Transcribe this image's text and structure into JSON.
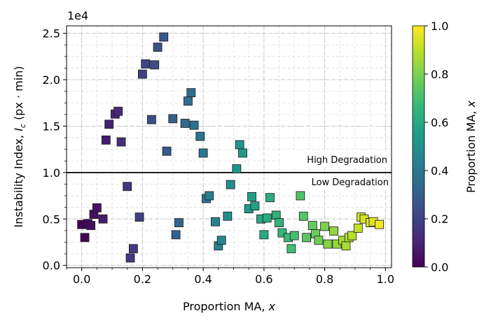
{
  "chart_data": {
    "type": "scatter",
    "xlabel": "Proportion MA, x",
    "ylabel": "Instability Index, I_c (px · min)",
    "y_offset_text": "1e4",
    "xlim": [
      -0.05,
      1.02
    ],
    "ylim": [
      -250,
      25800
    ],
    "x_ticks": [
      0.0,
      0.2,
      0.4,
      0.6,
      0.8,
      1.0
    ],
    "x_tick_labels": [
      "0.0",
      "0.2",
      "0.4",
      "0.6",
      "0.8",
      "1.0"
    ],
    "y_ticks": [
      0,
      5000,
      10000,
      15000,
      20000,
      25000
    ],
    "y_tick_labels": [
      "0.0",
      "0.5",
      "1.0",
      "1.5",
      "2.0",
      "2.5"
    ],
    "grid": "on (major and minor, dashed)",
    "marker": "square",
    "colormap": "viridis",
    "colorbar": {
      "label": "Proportion MA, x",
      "range": [
        0.0,
        1.0
      ],
      "ticks": [
        0.0,
        0.2,
        0.4,
        0.6,
        0.8,
        1.0
      ],
      "tick_labels": [
        "0.0",
        "0.2",
        "0.4",
        "0.6",
        "0.8",
        "1.0"
      ],
      "colors": [
        "#440154",
        "#482878",
        "#3e4989",
        "#31688e",
        "#26828e",
        "#1f9e89",
        "#35b779",
        "#6ece58",
        "#b5de2b",
        "#fde725"
      ]
    },
    "threshold": {
      "y": 10000,
      "color": "#000000"
    },
    "annotations": [
      "High Degradation",
      "Low Degradation"
    ],
    "points": [
      {
        "x": 0.0,
        "y": 4400
      },
      {
        "x": 0.01,
        "y": 3000
      },
      {
        "x": 0.02,
        "y": 4500
      },
      {
        "x": 0.03,
        "y": 4300
      },
      {
        "x": 0.04,
        "y": 5500
      },
      {
        "x": 0.05,
        "y": 6200
      },
      {
        "x": 0.07,
        "y": 5000
      },
      {
        "x": 0.08,
        "y": 13500
      },
      {
        "x": 0.09,
        "y": 15200
      },
      {
        "x": 0.11,
        "y": 16300
      },
      {
        "x": 0.12,
        "y": 16600
      },
      {
        "x": 0.13,
        "y": 13300
      },
      {
        "x": 0.15,
        "y": 8500
      },
      {
        "x": 0.16,
        "y": 800
      },
      {
        "x": 0.17,
        "y": 1800
      },
      {
        "x": 0.19,
        "y": 5200
      },
      {
        "x": 0.2,
        "y": 20600
      },
      {
        "x": 0.21,
        "y": 21700
      },
      {
        "x": 0.23,
        "y": 15700
      },
      {
        "x": 0.24,
        "y": 21600
      },
      {
        "x": 0.25,
        "y": 23500
      },
      {
        "x": 0.27,
        "y": 24600
      },
      {
        "x": 0.28,
        "y": 12300
      },
      {
        "x": 0.3,
        "y": 15800
      },
      {
        "x": 0.31,
        "y": 3300
      },
      {
        "x": 0.32,
        "y": 4600
      },
      {
        "x": 0.34,
        "y": 15300
      },
      {
        "x": 0.35,
        "y": 17700
      },
      {
        "x": 0.36,
        "y": 18600
      },
      {
        "x": 0.37,
        "y": 15100
      },
      {
        "x": 0.39,
        "y": 13900
      },
      {
        "x": 0.4,
        "y": 12100
      },
      {
        "x": 0.41,
        "y": 7200
      },
      {
        "x": 0.42,
        "y": 7500
      },
      {
        "x": 0.44,
        "y": 4700
      },
      {
        "x": 0.45,
        "y": 2100
      },
      {
        "x": 0.46,
        "y": 2700
      },
      {
        "x": 0.48,
        "y": 5300
      },
      {
        "x": 0.49,
        "y": 8700
      },
      {
        "x": 0.51,
        "y": 10400
      },
      {
        "x": 0.52,
        "y": 13000
      },
      {
        "x": 0.53,
        "y": 12100
      },
      {
        "x": 0.55,
        "y": 6100
      },
      {
        "x": 0.56,
        "y": 7400
      },
      {
        "x": 0.57,
        "y": 6400
      },
      {
        "x": 0.59,
        "y": 5000
      },
      {
        "x": 0.6,
        "y": 3300
      },
      {
        "x": 0.61,
        "y": 5100
      },
      {
        "x": 0.62,
        "y": 7300
      },
      {
        "x": 0.64,
        "y": 5400
      },
      {
        "x": 0.65,
        "y": 4600
      },
      {
        "x": 0.66,
        "y": 3500
      },
      {
        "x": 0.68,
        "y": 3000
      },
      {
        "x": 0.69,
        "y": 1800
      },
      {
        "x": 0.7,
        "y": 3200
      },
      {
        "x": 0.72,
        "y": 7500
      },
      {
        "x": 0.73,
        "y": 5300
      },
      {
        "x": 0.74,
        "y": 3000
      },
      {
        "x": 0.76,
        "y": 4300
      },
      {
        "x": 0.77,
        "y": 3400
      },
      {
        "x": 0.78,
        "y": 2700
      },
      {
        "x": 0.8,
        "y": 4200
      },
      {
        "x": 0.81,
        "y": 2300
      },
      {
        "x": 0.83,
        "y": 3700
      },
      {
        "x": 0.84,
        "y": 2300
      },
      {
        "x": 0.86,
        "y": 2700
      },
      {
        "x": 0.87,
        "y": 2100
      },
      {
        "x": 0.88,
        "y": 3000
      },
      {
        "x": 0.89,
        "y": 3200
      },
      {
        "x": 0.91,
        "y": 4000
      },
      {
        "x": 0.92,
        "y": 5200
      },
      {
        "x": 0.93,
        "y": 5000
      },
      {
        "x": 0.95,
        "y": 4600
      },
      {
        "x": 0.96,
        "y": 4700
      },
      {
        "x": 0.98,
        "y": 4400
      }
    ]
  }
}
